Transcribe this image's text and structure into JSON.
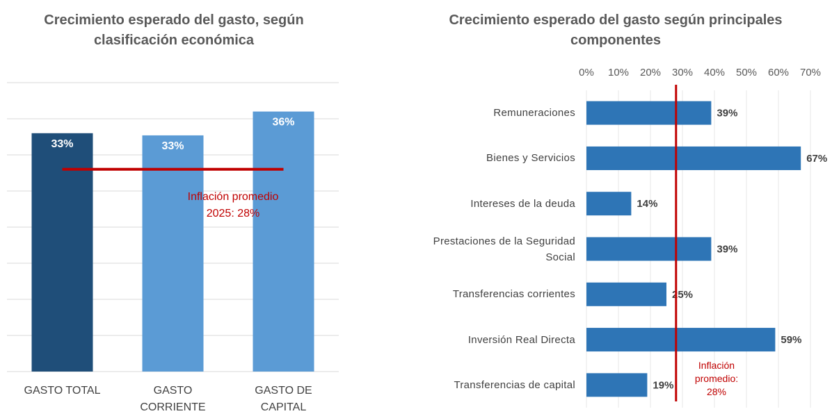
{
  "chart_data": [
    {
      "type": "bar",
      "orientation": "vertical",
      "title": "Crecimiento esperado del gasto, según clasificación económica",
      "categories": [
        "GASTO TOTAL",
        "GASTO CORRIENTE",
        "GASTO DE CAPITAL"
      ],
      "values": [
        33,
        32.7,
        36
      ],
      "value_labels": [
        "33%",
        "33%",
        "36%"
      ],
      "colors": [
        "#1f4e79",
        "#5b9bd5",
        "#5b9bd5"
      ],
      "ylim": [
        0,
        40
      ],
      "yticks": [
        0,
        5,
        10,
        15,
        20,
        25,
        30,
        35,
        40
      ],
      "grid": true,
      "reference_line": {
        "value": 28,
        "label": "Inflación promedio 2025: 28%",
        "color": "#c00000"
      }
    },
    {
      "type": "bar",
      "orientation": "horizontal",
      "title": "Crecimiento esperado del gasto según principales componentes",
      "categories": [
        "Remuneraciones",
        "Bienes y Servicios",
        "Intereses de la deuda",
        "Prestaciones de la Seguridad Social",
        "Transferencias corrientes",
        "Inversión Real Directa",
        "Transferencias de capital"
      ],
      "values": [
        39,
        67,
        14,
        39,
        25,
        59,
        19
      ],
      "value_labels": [
        "39%",
        "67%",
        "14%",
        "39%",
        "25%",
        "59%",
        "19%"
      ],
      "color": "#2e75b6",
      "xlim": [
        0,
        70
      ],
      "xticks": [
        {
          "value": 0,
          "label": "0%"
        },
        {
          "value": 10,
          "label": "10%"
        },
        {
          "value": 20,
          "label": "20%"
        },
        {
          "value": 30,
          "label": "30%"
        },
        {
          "value": 40,
          "label": "40%"
        },
        {
          "value": 50,
          "label": "50%"
        },
        {
          "value": 60,
          "label": "60%"
        },
        {
          "value": 70,
          "label": "70%"
        }
      ],
      "grid": true,
      "reference_line": {
        "value": 28,
        "label": "Inflación promedio: 28%",
        "color": "#c00000"
      }
    }
  ]
}
